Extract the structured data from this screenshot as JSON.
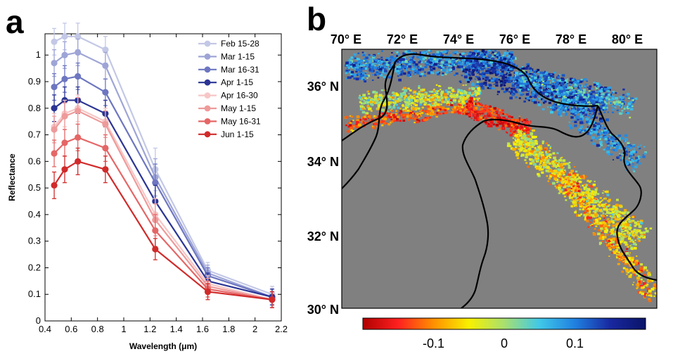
{
  "panels": {
    "a_label": "a",
    "b_label": "b"
  },
  "chart_data": [
    {
      "panel": "a",
      "type": "line",
      "xlabel": "Wavelength (μm)",
      "ylabel": "Reflectance",
      "xlim": [
        0.4,
        2.2
      ],
      "ylim": [
        0,
        1.08
      ],
      "xticks": [
        0.4,
        0.6,
        0.8,
        1,
        1.2,
        1.4,
        1.6,
        1.8,
        2,
        2.2
      ],
      "yticks": [
        0,
        0.1,
        0.2,
        0.3,
        0.4,
        0.5,
        0.6,
        0.7,
        0.8,
        0.9,
        1
      ],
      "x": [
        0.47,
        0.55,
        0.65,
        0.86,
        1.24,
        1.64,
        2.13
      ],
      "grid": false,
      "legend_position": "top-right",
      "series": [
        {
          "name": "Feb 15-28",
          "color": "#c3c8e6",
          "values": [
            1.05,
            1.07,
            1.07,
            1.02,
            0.57,
            0.19,
            0.1
          ],
          "err": [
            0.05,
            0.05,
            0.05,
            0.05,
            0.08,
            0.03,
            0.03
          ]
        },
        {
          "name": "Mar 1-15",
          "color": "#9ea5d6",
          "values": [
            0.97,
            1.0,
            1.01,
            0.96,
            0.54,
            0.18,
            0.09
          ],
          "err": [
            0.05,
            0.05,
            0.05,
            0.05,
            0.07,
            0.03,
            0.03
          ]
        },
        {
          "name": "Mar 16-31",
          "color": "#6d76c0",
          "values": [
            0.88,
            0.91,
            0.92,
            0.86,
            0.52,
            0.17,
            0.09
          ],
          "err": [
            0.05,
            0.05,
            0.05,
            0.05,
            0.07,
            0.03,
            0.03
          ]
        },
        {
          "name": "Apr 1-15",
          "color": "#2b3494",
          "values": [
            0.8,
            0.83,
            0.83,
            0.78,
            0.45,
            0.15,
            0.09
          ],
          "err": [
            0.05,
            0.05,
            0.05,
            0.05,
            0.06,
            0.03,
            0.03
          ]
        },
        {
          "name": "Apr 16-30",
          "color": "#f7c6c6",
          "values": [
            0.73,
            0.78,
            0.8,
            0.75,
            0.4,
            0.14,
            0.08
          ],
          "err": [
            0.05,
            0.05,
            0.05,
            0.05,
            0.06,
            0.03,
            0.03
          ]
        },
        {
          "name": "May 1-15",
          "color": "#ee9a9a",
          "values": [
            0.72,
            0.77,
            0.79,
            0.74,
            0.38,
            0.13,
            0.08
          ],
          "err": [
            0.05,
            0.05,
            0.05,
            0.05,
            0.06,
            0.03,
            0.03
          ]
        },
        {
          "name": "May 16-31",
          "color": "#e56666",
          "values": [
            0.63,
            0.67,
            0.69,
            0.65,
            0.34,
            0.12,
            0.08
          ],
          "err": [
            0.05,
            0.05,
            0.05,
            0.05,
            0.06,
            0.03,
            0.03
          ]
        },
        {
          "name": "Jun 1-15",
          "color": "#d12b2b",
          "values": [
            0.51,
            0.57,
            0.6,
            0.57,
            0.27,
            0.11,
            0.08
          ],
          "err": [
            0.05,
            0.05,
            0.05,
            0.05,
            0.04,
            0.03,
            0.03
          ]
        }
      ]
    },
    {
      "panel": "b",
      "type": "heatmap",
      "title": "",
      "xticks": [
        "70° E",
        "72° E",
        "74° E",
        "76° E",
        "78° E",
        "80° E"
      ],
      "yticks": [
        "36° N",
        "34° N",
        "32° N",
        "30° N"
      ],
      "xlim": [
        70,
        80
      ],
      "ylim": [
        30,
        37
      ],
      "land_color": "#808080",
      "colorbar": {
        "ticks": [
          "-0.1",
          "0",
          "0.1"
        ],
        "tick_values": [
          -0.1,
          0,
          0.1
        ],
        "range": [
          -0.2,
          0.2
        ],
        "colors": [
          "#b00000",
          "#ff2020",
          "#ff9000",
          "#f8f000",
          "#a8e070",
          "#40c8e8",
          "#2080e0",
          "#1828a0",
          "#0a1468"
        ]
      }
    }
  ]
}
